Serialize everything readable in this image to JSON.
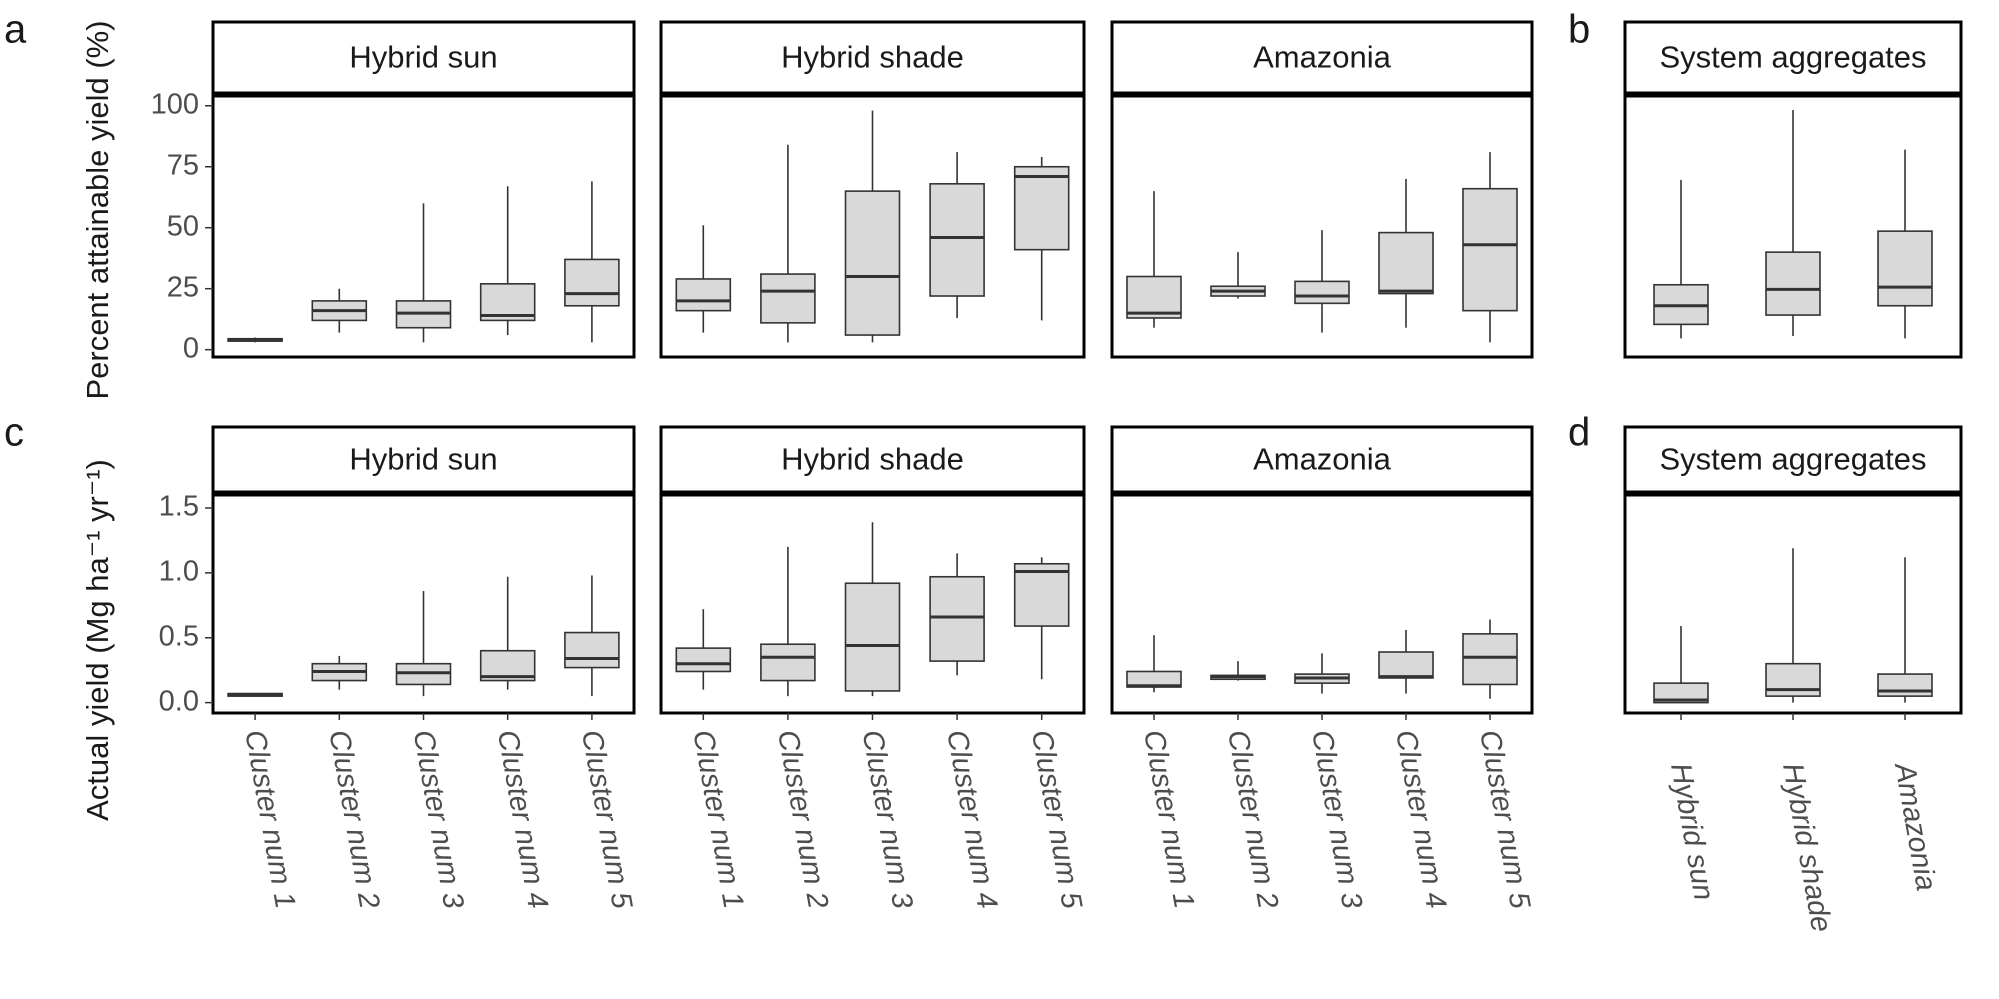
{
  "panel_labels": [
    "a",
    "b",
    "c",
    "d"
  ],
  "y_titles": {
    "top": "Percent attainable yield (%)",
    "bottom": "Actual yield (Mg  ha⁻¹ yr⁻¹)"
  },
  "colors": {
    "box_fill": "#d9d9d9",
    "line": "#333333",
    "frame": "#000000",
    "tick_text": "#4d4d4d"
  },
  "chart_data": [
    {
      "type": "boxplot",
      "panel": "a",
      "facets": [
        "Hybrid sun",
        "Hybrid shade",
        "Amazonia"
      ],
      "categories": [
        "Cluster num 1",
        "Cluster num 2",
        "Cluster num 3",
        "Cluster num 4",
        "Cluster num 5"
      ],
      "ylabel": "Percent attainable yield (%)",
      "ylim": [
        -3,
        104
      ],
      "yticks": [
        0,
        25,
        50,
        75,
        100
      ],
      "ytick_labels": [
        "0",
        "25",
        "50",
        "75",
        "100"
      ],
      "boxes": [
        [
          [
            3,
            3.5,
            4,
            4.5,
            5
          ],
          [
            7,
            12,
            16,
            20,
            25
          ],
          [
            3,
            9,
            15,
            20,
            60
          ],
          [
            6,
            12,
            14,
            27,
            67
          ],
          [
            3,
            18,
            23,
            37,
            69
          ]
        ],
        [
          [
            7,
            16,
            20,
            29,
            51
          ],
          [
            3,
            11,
            24,
            31,
            84
          ],
          [
            3,
            6,
            30,
            65,
            98
          ],
          [
            13,
            22,
            46,
            68,
            81
          ],
          [
            12,
            41,
            71,
            75,
            79
          ]
        ],
        [
          [
            9,
            13,
            15,
            30,
            65
          ],
          [
            21,
            22,
            24,
            26,
            40
          ],
          [
            7,
            19,
            22,
            28,
            49
          ],
          [
            9,
            23,
            24,
            48,
            70
          ],
          [
            3,
            16,
            43,
            66,
            81
          ]
        ]
      ]
    },
    {
      "type": "boxplot",
      "panel": "b",
      "facets": [
        "System aggregates"
      ],
      "categories": [
        "Hybrid sun",
        "Hybrid shade",
        "Amazonia"
      ],
      "ylim": [
        -8,
        104
      ],
      "boxes": [
        [
          [
            0,
            6,
            14,
            23,
            68
          ],
          [
            1,
            10,
            21,
            37,
            98
          ],
          [
            0,
            14,
            22,
            46,
            81
          ]
        ]
      ]
    },
    {
      "type": "boxplot",
      "panel": "c",
      "facets": [
        "Hybrid sun",
        "Hybrid shade",
        "Amazonia"
      ],
      "categories": [
        "Cluster num 1",
        "Cluster num 2",
        "Cluster num 3",
        "Cluster num 4",
        "Cluster num 5"
      ],
      "ylabel": "Actual yield (Mg  ha⁻¹ yr⁻¹)",
      "ylim": [
        -0.08,
        1.6
      ],
      "yticks": [
        0.0,
        0.5,
        1.0,
        1.5
      ],
      "ytick_labels": [
        "0.0",
        "0.5",
        "1.0",
        "1.5"
      ],
      "boxes": [
        [
          [
            0.05,
            0.05,
            0.06,
            0.07,
            0.07
          ],
          [
            0.1,
            0.17,
            0.24,
            0.3,
            0.36
          ],
          [
            0.05,
            0.14,
            0.23,
            0.3,
            0.86
          ],
          [
            0.1,
            0.17,
            0.2,
            0.4,
            0.97
          ],
          [
            0.05,
            0.27,
            0.34,
            0.54,
            0.98
          ]
        ],
        [
          [
            0.1,
            0.24,
            0.3,
            0.42,
            0.72
          ],
          [
            0.05,
            0.17,
            0.35,
            0.45,
            1.2
          ],
          [
            0.05,
            0.09,
            0.44,
            0.92,
            1.39
          ],
          [
            0.21,
            0.32,
            0.66,
            0.97,
            1.15
          ],
          [
            0.18,
            0.59,
            1.01,
            1.07,
            1.12
          ]
        ],
        [
          [
            0.08,
            0.12,
            0.13,
            0.24,
            0.52
          ],
          [
            0.17,
            0.18,
            0.2,
            0.21,
            0.32
          ],
          [
            0.07,
            0.15,
            0.19,
            0.22,
            0.38
          ],
          [
            0.07,
            0.19,
            0.2,
            0.39,
            0.56
          ],
          [
            0.03,
            0.14,
            0.35,
            0.53,
            0.64
          ]
        ]
      ]
    },
    {
      "type": "boxplot",
      "panel": "d",
      "facets": [
        "System aggregates"
      ],
      "categories": [
        "Hybrid sun",
        "Hybrid shade",
        "Amazonia"
      ],
      "ylim": [
        -0.08,
        1.6
      ],
      "boxes": [
        [
          [
            0,
            0,
            0.02,
            0.15,
            0.59
          ],
          [
            0,
            0.05,
            0.1,
            0.3,
            1.19
          ],
          [
            0,
            0.05,
            0.09,
            0.22,
            1.12
          ]
        ]
      ]
    }
  ]
}
